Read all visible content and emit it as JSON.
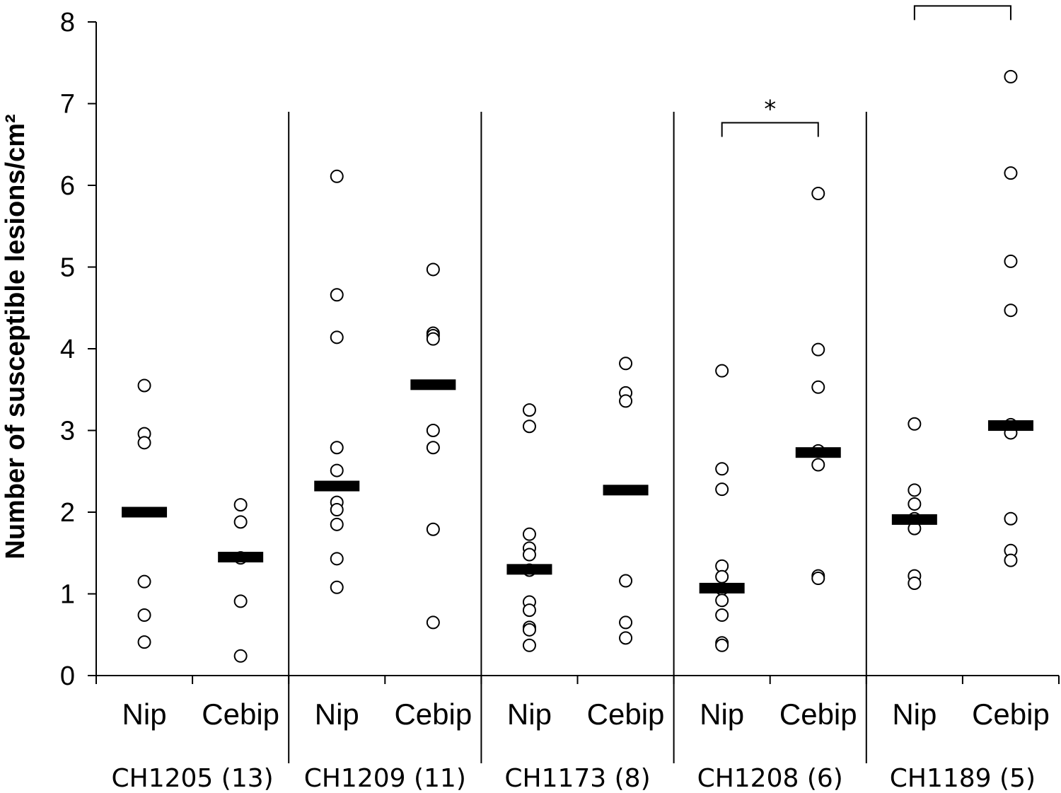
{
  "chart_data": {
    "type": "scatter",
    "ylabel": "Number of susceptible lesions/cm²",
    "ylim": [
      0,
      8
    ],
    "yticks": [
      0,
      1,
      2,
      3,
      4,
      5,
      6,
      7,
      8
    ],
    "grid": false,
    "groups": [
      {
        "label": "CH1205 (13)",
        "categories": [
          {
            "name": "Nip",
            "mean": 2.0,
            "values": [
              3.55,
              2.96,
              2.85,
              1.15,
              0.74,
              0.41
            ]
          },
          {
            "name": "Cebip",
            "mean": 1.45,
            "values": [
              2.09,
              1.88,
              1.44,
              0.91,
              0.24
            ]
          }
        ],
        "significance": ""
      },
      {
        "label": "CH1209 (11)",
        "categories": [
          {
            "name": "Nip",
            "mean": 2.32,
            "values": [
              6.11,
              4.66,
              4.14,
              2.79,
              2.51,
              2.12,
              2.03,
              1.85,
              1.43,
              1.08
            ]
          },
          {
            "name": "Cebip",
            "mean": 3.56,
            "values": [
              4.97,
              4.19,
              4.16,
              4.12,
              3.0,
              2.79,
              1.79,
              0.65
            ]
          }
        ],
        "significance": ""
      },
      {
        "label": "CH1173 (8)",
        "categories": [
          {
            "name": "Nip",
            "mean": 1.3,
            "values": [
              3.25,
              3.05,
              1.73,
              1.56,
              1.48,
              1.29,
              0.9,
              0.8,
              0.59,
              0.56,
              0.37
            ]
          },
          {
            "name": "Cebip",
            "mean": 2.27,
            "values": [
              3.82,
              3.46,
              3.36,
              1.16,
              0.65,
              0.46
            ]
          }
        ],
        "significance": ""
      },
      {
        "label": "CH1208 (6)",
        "categories": [
          {
            "name": "Nip",
            "mean": 1.07,
            "values": [
              3.73,
              2.53,
              2.28,
              1.34,
              1.21,
              1.06,
              0.92,
              0.74,
              0.4,
              0.37
            ]
          },
          {
            "name": "Cebip",
            "mean": 2.73,
            "values": [
              5.9,
              3.99,
              3.53,
              2.75,
              2.58,
              1.22,
              1.19
            ]
          }
        ],
        "significance": "*"
      },
      {
        "label": "CH1189 (5)",
        "categories": [
          {
            "name": "Nip",
            "mean": 1.91,
            "values": [
              3.08,
              2.27,
              2.1,
              1.92,
              1.8,
              1.22,
              1.13
            ]
          },
          {
            "name": "Cebip",
            "mean": 3.06,
            "values": [
              7.33,
              6.15,
              5.07,
              4.47,
              3.07,
              2.97,
              1.92,
              1.53,
              1.41
            ]
          }
        ],
        "significance": "**"
      }
    ]
  }
}
